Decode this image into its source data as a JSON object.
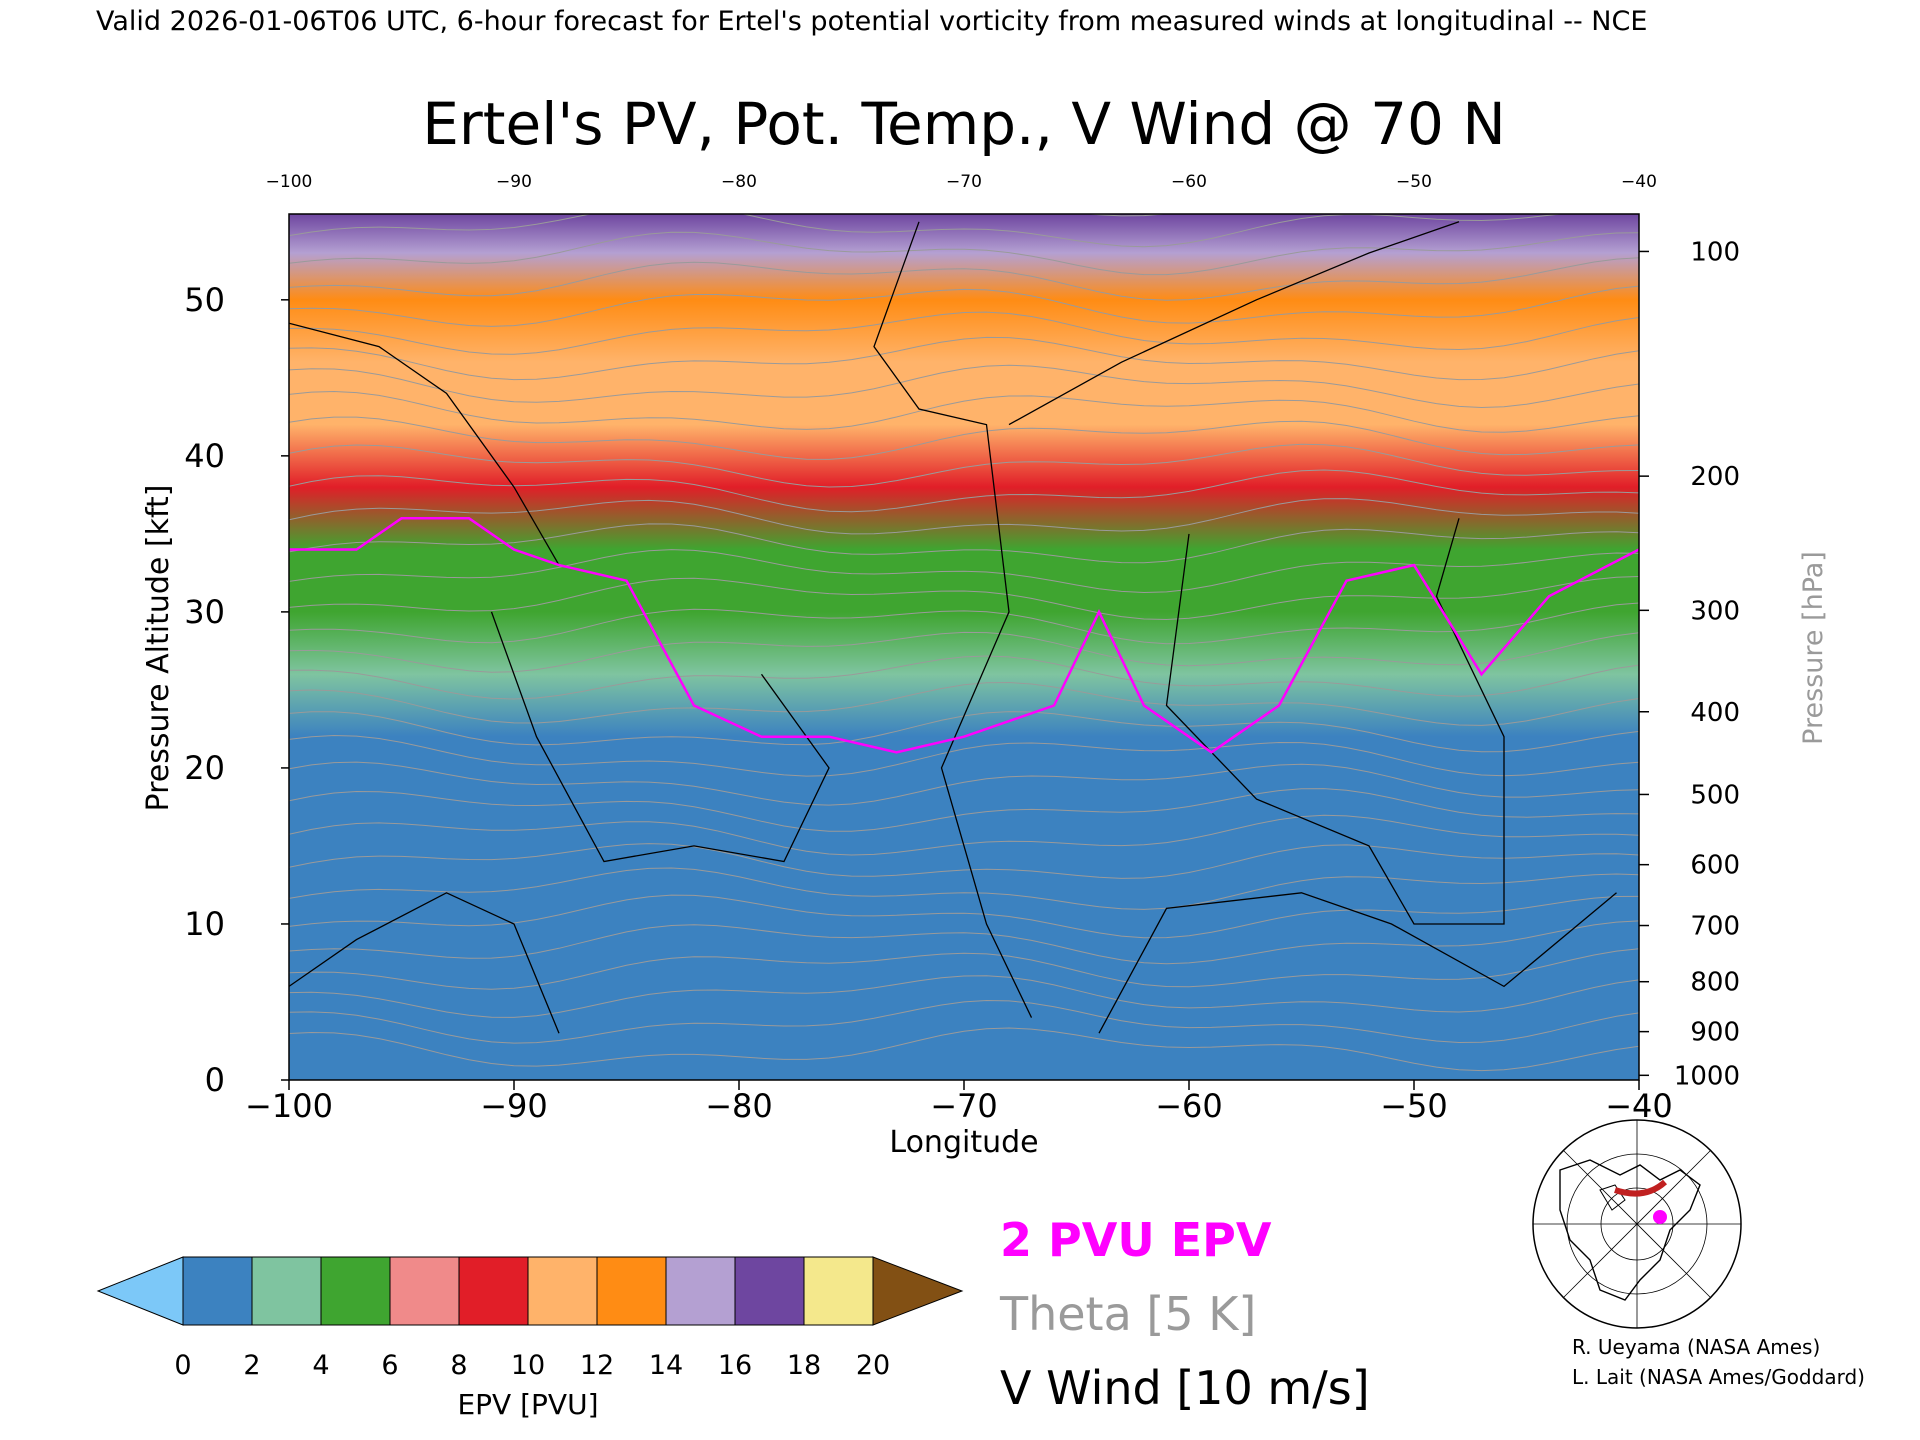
{
  "header": {
    "line": "Valid 2026-01-06T06 UTC, 6-hour forecast for Ertel's potential vorticity from measured winds at longitudinal -- NCE"
  },
  "chart_data": {
    "type": "heatmap",
    "title": "Ertel's PV, Pot. Temp., V Wind @ 70 N",
    "xlabel": "Longitude",
    "ylabel": "Pressure Altitude [kft]",
    "y2label": "Pressure [hPa]",
    "xlim": [
      -100,
      -40
    ],
    "ylim": [
      0,
      55.5
    ],
    "x_ticks": [
      -100,
      -90,
      -80,
      -70,
      -60,
      -50,
      -40
    ],
    "x_tick_labels": [
      "−100",
      "−90",
      "−80",
      "−70",
      "−60",
      "−50",
      "−40"
    ],
    "top_tick_labels": [
      "−100",
      "−90",
      "−80",
      "−70",
      "−60",
      "−50",
      "−40"
    ],
    "y_ticks": [
      0,
      10,
      20,
      30,
      40,
      50
    ],
    "pressure_ticks": [
      {
        "hpa": 100,
        "kft": 53.1
      },
      {
        "hpa": 200,
        "kft": 38.7
      },
      {
        "hpa": 300,
        "kft": 30.1
      },
      {
        "hpa": 400,
        "kft": 23.6
      },
      {
        "hpa": 500,
        "kft": 18.3
      },
      {
        "hpa": 600,
        "kft": 13.8
      },
      {
        "hpa": 700,
        "kft": 9.9
      },
      {
        "hpa": 800,
        "kft": 6.3
      },
      {
        "hpa": 900,
        "kft": 3.1
      },
      {
        "hpa": 1000,
        "kft": 0.3
      }
    ],
    "epv_profile_kft": [
      {
        "kft": 0,
        "pvu": 0.9
      },
      {
        "kft": 22,
        "pvu": 1.5
      },
      {
        "kft": 26,
        "pvu": 2.6
      },
      {
        "kft": 30,
        "pvu": 4.2
      },
      {
        "kft": 34,
        "pvu": 5.6
      },
      {
        "kft": 38,
        "pvu": 8.2
      },
      {
        "kft": 42,
        "pvu": 10.2
      },
      {
        "kft": 46,
        "pvu": 11.6
      },
      {
        "kft": 50,
        "pvu": 12.8
      },
      {
        "kft": 53,
        "pvu": 14.5
      },
      {
        "kft": 55.5,
        "pvu": 16.5
      }
    ],
    "tropopause_2pvu": [
      {
        "lon": -100,
        "kft": 34
      },
      {
        "lon": -97,
        "kft": 34
      },
      {
        "lon": -95,
        "kft": 36
      },
      {
        "lon": -92,
        "kft": 36
      },
      {
        "lon": -90,
        "kft": 34
      },
      {
        "lon": -88,
        "kft": 33
      },
      {
        "lon": -85,
        "kft": 32
      },
      {
        "lon": -82,
        "kft": 24
      },
      {
        "lon": -79,
        "kft": 22
      },
      {
        "lon": -76,
        "kft": 22
      },
      {
        "lon": -73,
        "kft": 21
      },
      {
        "lon": -70,
        "kft": 22
      },
      {
        "lon": -66,
        "kft": 24
      },
      {
        "lon": -64,
        "kft": 30
      },
      {
        "lon": -62,
        "kft": 24
      },
      {
        "lon": -59,
        "kft": 21
      },
      {
        "lon": -56,
        "kft": 24
      },
      {
        "lon": -53,
        "kft": 32
      },
      {
        "lon": -50,
        "kft": 33
      },
      {
        "lon": -47,
        "kft": 26
      },
      {
        "lon": -44,
        "kft": 31
      },
      {
        "lon": -40,
        "kft": 34
      }
    ],
    "colorbar": {
      "label": "EPV [PVU]",
      "tick_labels": [
        "0",
        "2",
        "4",
        "6",
        "8",
        "10",
        "12",
        "14",
        "16",
        "18",
        "20"
      ],
      "colors": [
        "#3c82c0",
        "#7fc4a0",
        "#3fa530",
        "#f08a8a",
        "#e11e28",
        "#ffb36a",
        "#ff8c14",
        "#b4a0d2",
        "#6e46a0",
        "#f4e88c"
      ],
      "under_color": "#7cc8f8",
      "over_color": "#825014"
    }
  },
  "legend": {
    "epv": "2 PVU EPV",
    "theta": "Theta [5 K]",
    "wind": "V Wind [10 m/s]"
  },
  "credits": {
    "line1": "R. Ueyama (NASA Ames)",
    "line2": "L. Lait (NASA Ames/Goddard)"
  },
  "colors": {
    "tropopause": "#ff00ff",
    "theta": "#9a9a9a",
    "wind": "#000000"
  }
}
